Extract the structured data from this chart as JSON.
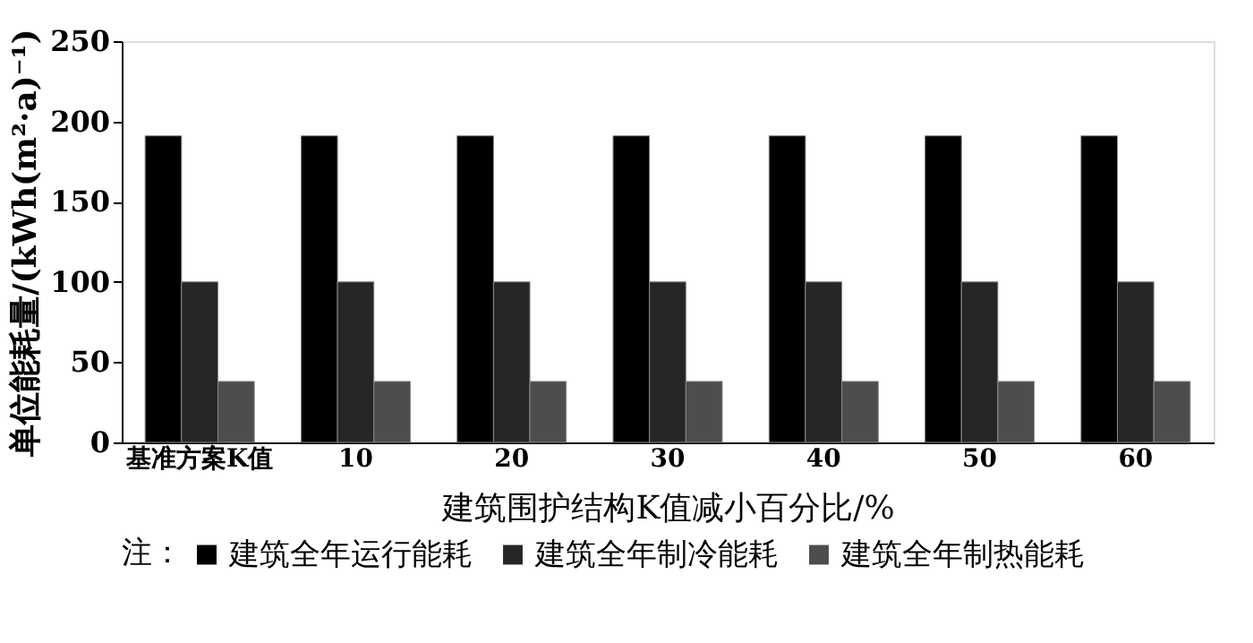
{
  "chart_data": {
    "type": "bar",
    "xlabel": "建筑围护结构K值减小百分比/%",
    "ylabel": "单位能耗量/(kWh(m²·a)⁻¹)",
    "legend_title": "注：",
    "categories": [
      "基准方案K值",
      "10",
      "20",
      "30",
      "40",
      "50",
      "60"
    ],
    "series": [
      {
        "name": "建筑全年运行能耗",
        "color": "#000000",
        "values": [
          191,
          191,
          191,
          191,
          191,
          191,
          191
        ]
      },
      {
        "name": "建筑全年制冷能耗",
        "color": "#262626",
        "values": [
          100,
          100,
          100,
          100,
          100,
          100,
          100
        ]
      },
      {
        "name": "建筑全年制热能耗",
        "color": "#4d4d4d",
        "values": [
          38,
          38,
          38,
          38,
          38,
          38,
          38
        ]
      }
    ],
    "ylim": [
      0,
      250
    ],
    "yticks": [
      0,
      50,
      100,
      150,
      200,
      250
    ],
    "grid": false,
    "legend": "bottom"
  }
}
